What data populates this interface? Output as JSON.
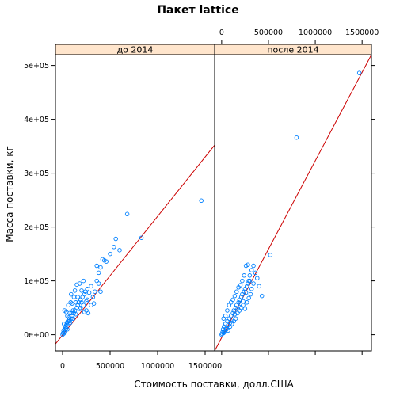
{
  "chart_data": {
    "type": "scatter",
    "title": "Пакет lattice",
    "xlabel": "Стоимость поставки, долл.США",
    "ylabel": "Масса поставки, кг",
    "xlim": [
      -75000,
      1600000
    ],
    "ylim": [
      -30000,
      520000
    ],
    "x_ticks": [
      0,
      500000,
      1000000,
      1500000
    ],
    "x_tick_labels": [
      "0",
      "500000",
      "1000000",
      "1500000"
    ],
    "y_ticks": [
      0,
      100000,
      200000,
      300000,
      400000,
      500000
    ],
    "y_tick_labels": [
      "0e+00",
      "1e+05",
      "2e+05",
      "3e+05",
      "4e+05",
      "5e+05"
    ],
    "colors": {
      "strip": "#ffe5cc",
      "points": "#0080ff",
      "fit_line": "#cc0000",
      "frame": "#000000"
    },
    "panels": [
      {
        "label": "до  2014",
        "fit_line": {
          "x": [
            -75000,
            1600000
          ],
          "y": [
            -17000,
            352000
          ]
        },
        "points": [
          [
            0,
            0
          ],
          [
            5000,
            3000
          ],
          [
            10000,
            8000
          ],
          [
            12000,
            2000
          ],
          [
            15000,
            20000
          ],
          [
            20000,
            5000
          ],
          [
            25000,
            10000
          ],
          [
            30000,
            15000
          ],
          [
            35000,
            12000
          ],
          [
            40000,
            18000
          ],
          [
            45000,
            22000
          ],
          [
            50000,
            10000
          ],
          [
            55000,
            25000
          ],
          [
            60000,
            20000
          ],
          [
            70000,
            28000
          ],
          [
            80000,
            22000
          ],
          [
            90000,
            30000
          ],
          [
            100000,
            35000
          ],
          [
            110000,
            30000
          ],
          [
            120000,
            40000
          ],
          [
            130000,
            45000
          ],
          [
            140000,
            38000
          ],
          [
            150000,
            50000
          ],
          [
            160000,
            55000
          ],
          [
            170000,
            60000
          ],
          [
            180000,
            48000
          ],
          [
            190000,
            65000
          ],
          [
            200000,
            60000
          ],
          [
            210000,
            70000
          ],
          [
            220000,
            55000
          ],
          [
            230000,
            75000
          ],
          [
            240000,
            80000
          ],
          [
            250000,
            62000
          ],
          [
            260000,
            85000
          ],
          [
            280000,
            78000
          ],
          [
            300000,
            90000
          ],
          [
            320000,
            70000
          ],
          [
            340000,
            80000
          ],
          [
            360000,
            100000
          ],
          [
            380000,
            95000
          ],
          [
            400000,
            80000
          ],
          [
            420000,
            140000
          ],
          [
            440000,
            138000
          ],
          [
            460000,
            136000
          ],
          [
            500000,
            150000
          ],
          [
            540000,
            163000
          ],
          [
            560000,
            178000
          ],
          [
            600000,
            157000
          ],
          [
            680000,
            224000
          ],
          [
            830000,
            180000
          ],
          [
            1460000,
            249000
          ],
          [
            20000,
            45000
          ],
          [
            40000,
            42000
          ],
          [
            60000,
            55000
          ],
          [
            75000,
            40000
          ],
          [
            100000,
            58000
          ],
          [
            120000,
            70000
          ],
          [
            150000,
            93000
          ],
          [
            180000,
            95000
          ],
          [
            200000,
            82000
          ],
          [
            220000,
            100000
          ],
          [
            250000,
            45000
          ],
          [
            270000,
            40000
          ],
          [
            300000,
            55000
          ],
          [
            330000,
            58000
          ],
          [
            360000,
            128000
          ],
          [
            380000,
            115000
          ],
          [
            400000,
            125000
          ],
          [
            90000,
            75000
          ],
          [
            130000,
            82000
          ],
          [
            160000,
            70000
          ],
          [
            190000,
            50000
          ],
          [
            230000,
            42000
          ],
          [
            260000,
            65000
          ],
          [
            110000,
            45000
          ],
          [
            85000,
            60000
          ],
          [
            140000,
            60000
          ],
          [
            50000,
            35000
          ],
          [
            65000,
            32000
          ],
          [
            75000,
            25000
          ],
          [
            95000,
            40000
          ]
        ]
      },
      {
        "label": "после  2014",
        "fit_line": {
          "x": [
            -75000,
            1600000
          ],
          "y": [
            -30000,
            520000
          ]
        },
        "points": [
          [
            0,
            0
          ],
          [
            5000,
            2000
          ],
          [
            10000,
            5000
          ],
          [
            15000,
            10000
          ],
          [
            20000,
            3000
          ],
          [
            25000,
            15000
          ],
          [
            30000,
            8000
          ],
          [
            40000,
            20000
          ],
          [
            50000,
            12000
          ],
          [
            60000,
            25000
          ],
          [
            70000,
            18000
          ],
          [
            80000,
            30000
          ],
          [
            90000,
            22000
          ],
          [
            100000,
            35000
          ],
          [
            110000,
            28000
          ],
          [
            120000,
            40000
          ],
          [
            130000,
            45000
          ],
          [
            140000,
            38000
          ],
          [
            150000,
            50000
          ],
          [
            160000,
            55000
          ],
          [
            170000,
            48000
          ],
          [
            180000,
            60000
          ],
          [
            190000,
            65000
          ],
          [
            200000,
            58000
          ],
          [
            210000,
            70000
          ],
          [
            220000,
            75000
          ],
          [
            230000,
            62000
          ],
          [
            240000,
            80000
          ],
          [
            250000,
            85000
          ],
          [
            260000,
            78000
          ],
          [
            270000,
            90000
          ],
          [
            280000,
            95000
          ],
          [
            290000,
            100000
          ],
          [
            300000,
            110000
          ],
          [
            320000,
            120000
          ],
          [
            340000,
            128000
          ],
          [
            360000,
            115000
          ],
          [
            380000,
            105000
          ],
          [
            400000,
            90000
          ],
          [
            430000,
            72000
          ],
          [
            520000,
            148000
          ],
          [
            800000,
            366000
          ],
          [
            1470000,
            486000
          ],
          [
            20000,
            30000
          ],
          [
            40000,
            35000
          ],
          [
            60000,
            45000
          ],
          [
            80000,
            55000
          ],
          [
            100000,
            60000
          ],
          [
            120000,
            65000
          ],
          [
            140000,
            72000
          ],
          [
            160000,
            80000
          ],
          [
            180000,
            88000
          ],
          [
            200000,
            92000
          ],
          [
            220000,
            100000
          ],
          [
            240000,
            110000
          ],
          [
            260000,
            128000
          ],
          [
            280000,
            130000
          ],
          [
            300000,
            100000
          ],
          [
            320000,
            85000
          ],
          [
            340000,
            95000
          ],
          [
            30000,
            5000
          ],
          [
            50000,
            10000
          ],
          [
            70000,
            8000
          ],
          [
            90000,
            15000
          ],
          [
            110000,
            20000
          ],
          [
            130000,
            25000
          ],
          [
            150000,
            30000
          ],
          [
            170000,
            40000
          ],
          [
            190000,
            45000
          ],
          [
            210000,
            50000
          ],
          [
            230000,
            55000
          ],
          [
            250000,
            48000
          ],
          [
            270000,
            60000
          ],
          [
            290000,
            68000
          ],
          [
            310000,
            75000
          ]
        ]
      }
    ]
  }
}
